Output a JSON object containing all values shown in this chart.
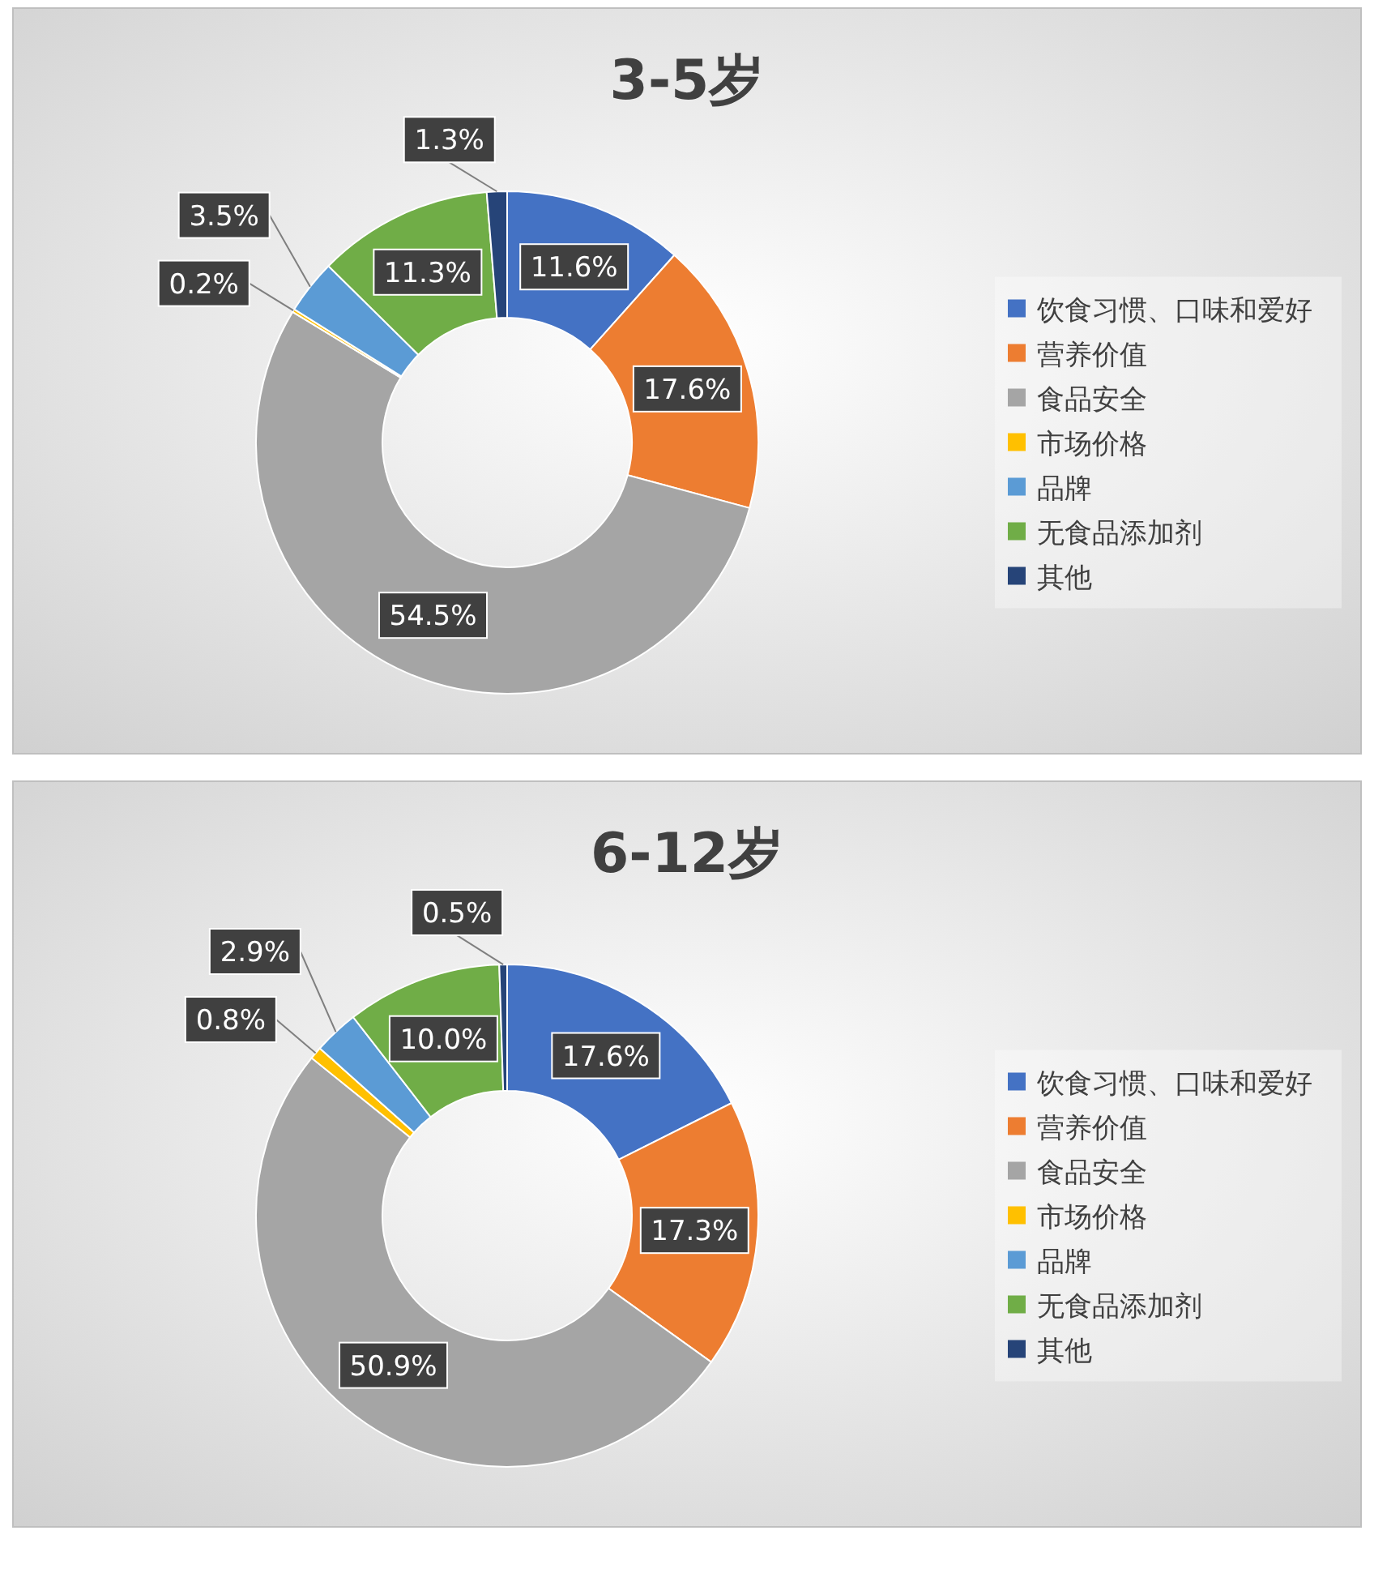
{
  "chart_data": [
    {
      "type": "donut",
      "title": "3-5岁",
      "categories": [
        "饮食习惯、口味和爱好",
        "营养价值",
        "食品安全",
        "市场价格",
        "品牌",
        "无食品添加剂",
        "其他"
      ],
      "values": [
        11.6,
        17.6,
        54.5,
        0.2,
        3.5,
        11.3,
        1.3
      ],
      "value_labels": [
        "11.6%",
        "17.6%",
        "54.5%",
        "0.2%",
        "3.5%",
        "11.3%",
        "1.3%"
      ],
      "colors": [
        "#4472c4",
        "#ed7d31",
        "#a5a5a5",
        "#ffc000",
        "#5b9bd5",
        "#70ad47",
        "#264478"
      ],
      "legend": "right"
    },
    {
      "type": "donut",
      "title": "6-12岁",
      "categories": [
        "饮食习惯、口味和爱好",
        "营养价值",
        "食品安全",
        "市场价格",
        "品牌",
        "无食品添加剂",
        "其他"
      ],
      "values": [
        17.6,
        17.3,
        50.9,
        0.8,
        2.9,
        10.0,
        0.5
      ],
      "value_labels": [
        "17.6%",
        "17.3%",
        "50.9%",
        "0.8%",
        "2.9%",
        "10.0%",
        "0.5%"
      ],
      "colors": [
        "#4472c4",
        "#ed7d31",
        "#a5a5a5",
        "#ffc000",
        "#5b9bd5",
        "#70ad47",
        "#264478"
      ],
      "legend": "right"
    }
  ]
}
